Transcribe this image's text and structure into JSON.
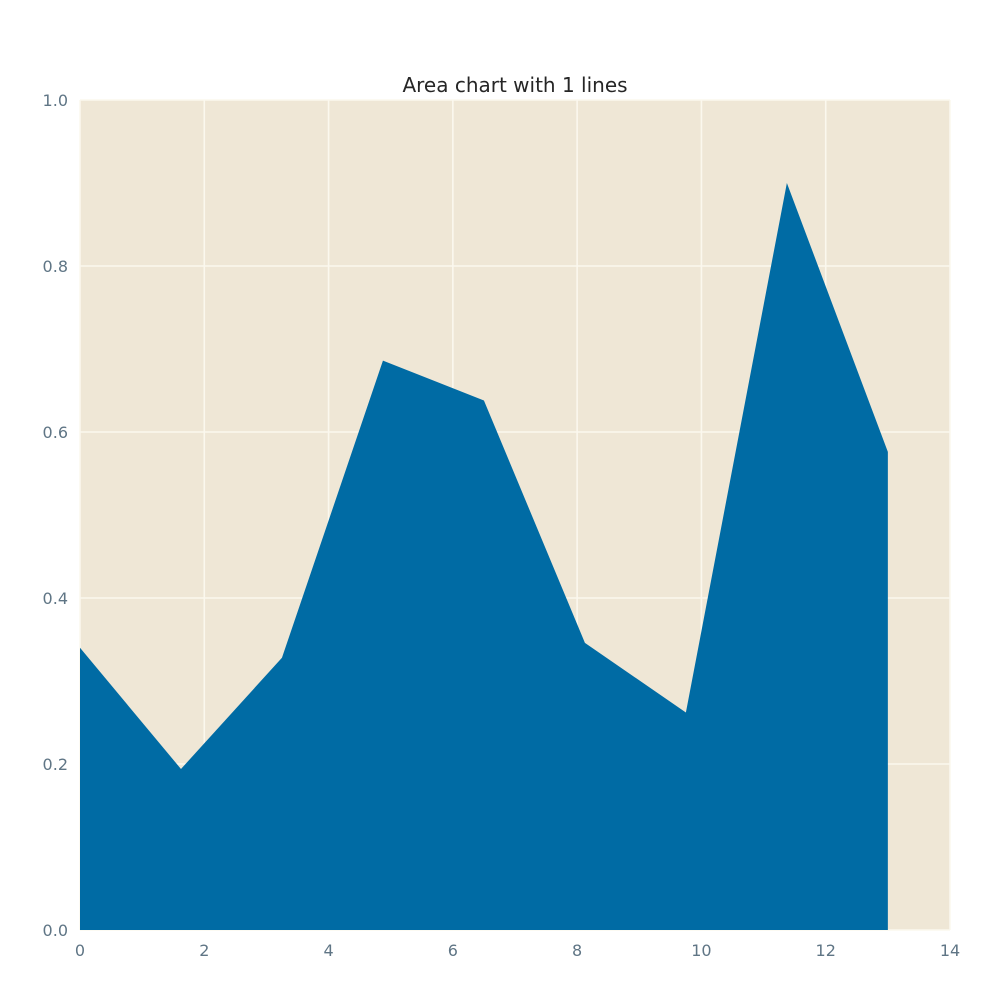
{
  "chart_data": {
    "type": "area",
    "title": "Area chart with 1 lines",
    "xlabel": "",
    "ylabel": "",
    "xlim": [
      0,
      14
    ],
    "ylim": [
      0,
      1.0
    ],
    "x_ticks": [
      "0",
      "2",
      "4",
      "6",
      "8",
      "10",
      "12",
      "14"
    ],
    "y_ticks": [
      "0.0",
      "0.2",
      "0.4",
      "0.6",
      "0.8",
      "1.0"
    ],
    "grid": true,
    "legend": "none",
    "series": [
      {
        "x": [
          0,
          1.625,
          3.25,
          4.875,
          6.5,
          8.125,
          9.75,
          11.375,
          13.0
        ],
        "values": [
          0.34,
          0.194,
          0.328,
          0.686,
          0.638,
          0.346,
          0.262,
          0.9,
          0.576
        ],
        "color": "#006ba4"
      }
    ],
    "colors": {
      "plot_background": "#efe7d6",
      "grid": "#fbf8ee",
      "area_fill": "#006ba4",
      "tick_text": "#5f7585",
      "title_text": "#262626"
    }
  }
}
